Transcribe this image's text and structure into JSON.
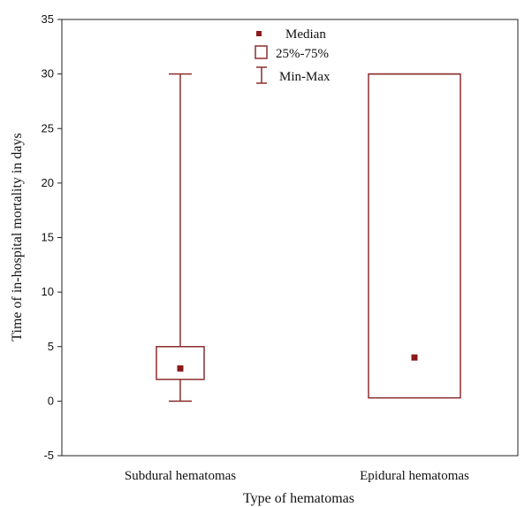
{
  "chart_data": {
    "type": "box",
    "xlabel": "Type of hematomas",
    "ylabel": "Time of in-hospital mortality in days",
    "ylim": [
      -5,
      35
    ],
    "yticks": [
      -5,
      0,
      5,
      10,
      15,
      20,
      25,
      30,
      35
    ],
    "ytick_labels": [
      "-5",
      "0",
      "5",
      "10",
      "15",
      "20",
      "25",
      "30",
      "35"
    ],
    "grid": false,
    "legend_position": "top-center",
    "legend": {
      "median": "Median",
      "box": "25%-75%",
      "whisker": "Min-Max"
    },
    "categories": [
      "Subdural hematomas",
      "Epidural hematomas"
    ],
    "boxes": [
      {
        "category": "Subdural hematomas",
        "min": 0,
        "q1": 2,
        "median": 3,
        "q3": 5,
        "max": 30
      },
      {
        "category": "Epidural hematomas",
        "min": 0.3,
        "q1": 0.3,
        "median": 4,
        "q3": 30,
        "max": 30
      }
    ],
    "colors": {
      "box": "#8b2e2e",
      "median": "#8b1a1a",
      "axis": "#222222"
    }
  }
}
